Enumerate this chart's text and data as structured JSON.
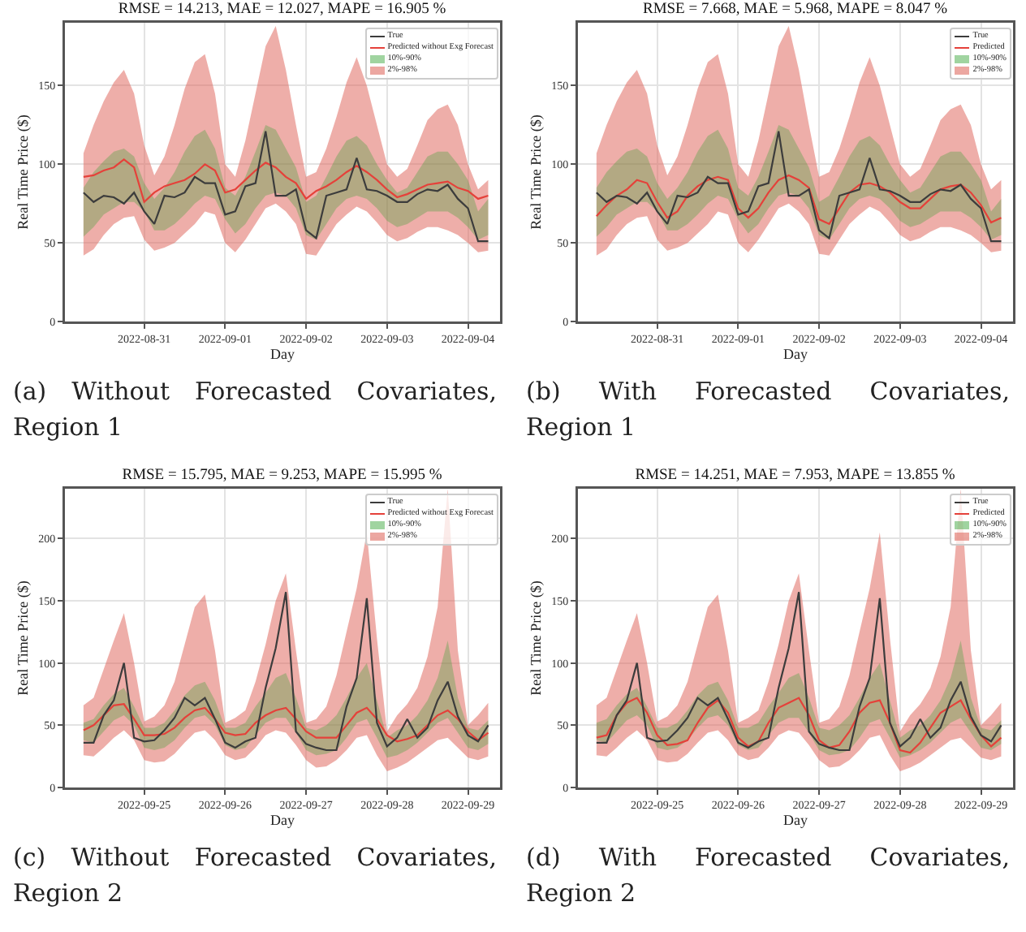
{
  "chart_data": [
    {
      "type": "line",
      "title": "RMSE = 14.213, MAE = 12.027, MAPE = 16.905 %",
      "xlabel": "Day",
      "ylabel": "Real Time Price ($)",
      "annotations": [
        "(a) Without Forecasted Covariates, Region 1"
      ],
      "xlim": [
        "2022-08-30T00:30",
        "2022-09-04T09:30"
      ],
      "ylim": [
        0,
        190
      ],
      "xticks": [
        "2022-08-31",
        "2022-09-01",
        "2022-09-02",
        "2022-09-03",
        "2022-09-04"
      ],
      "yticks": [
        0,
        50,
        100,
        150
      ],
      "grid": true,
      "legend": "top right",
      "x": [
        "2022-08-30T06:00",
        "2022-08-30T09:00",
        "2022-08-30T12:00",
        "2022-08-30T15:00",
        "2022-08-30T18:00",
        "2022-08-30T21:00",
        "2022-08-31T00:00",
        "2022-08-31T03:00",
        "2022-08-31T06:00",
        "2022-08-31T09:00",
        "2022-08-31T12:00",
        "2022-08-31T15:00",
        "2022-08-31T18:00",
        "2022-08-31T21:00",
        "2022-09-01T00:00",
        "2022-09-01T03:00",
        "2022-09-01T06:00",
        "2022-09-01T09:00",
        "2022-09-01T12:00",
        "2022-09-01T15:00",
        "2022-09-01T18:00",
        "2022-09-01T21:00",
        "2022-09-02T00:00",
        "2022-09-02T03:00",
        "2022-09-02T06:00",
        "2022-09-02T09:00",
        "2022-09-02T12:00",
        "2022-09-02T15:00",
        "2022-09-02T18:00",
        "2022-09-02T21:00",
        "2022-09-03T00:00",
        "2022-09-03T03:00",
        "2022-09-03T06:00",
        "2022-09-03T09:00",
        "2022-09-03T12:00",
        "2022-09-03T15:00",
        "2022-09-03T18:00",
        "2022-09-03T21:00",
        "2022-09-04T00:00",
        "2022-09-04T03:00",
        "2022-09-04T06:00"
      ],
      "series": [
        {
          "name": "True",
          "color": "#3c3c3c",
          "values": [
            82,
            76,
            80,
            79,
            75,
            82,
            70,
            62,
            80,
            79,
            82,
            92,
            88,
            88,
            68,
            70,
            86,
            88,
            121,
            80,
            80,
            84,
            58,
            53,
            80,
            82,
            84,
            104,
            84,
            83,
            80,
            76,
            76,
            81,
            84,
            83,
            87,
            78,
            72,
            51,
            51
          ]
        },
        {
          "name": "Predicted without Exg Forecast",
          "color": "#e5413a",
          "values": [
            92,
            93,
            96,
            98,
            103,
            98,
            76,
            82,
            86,
            88,
            90,
            94,
            100,
            96,
            82,
            84,
            90,
            96,
            101,
            98,
            92,
            88,
            78,
            83,
            86,
            90,
            95,
            99,
            95,
            90,
            84,
            79,
            81,
            84,
            87,
            88,
            89,
            85,
            83,
            78,
            80
          ]
        },
        {
          "name": "10%-90%",
          "color": "#2ca02c",
          "values": [
            null,
            null,
            null,
            null,
            null,
            null,
            null,
            null,
            null,
            null,
            null,
            null,
            null,
            null,
            null,
            null,
            null,
            null,
            null,
            null,
            null,
            null,
            null,
            null,
            null,
            null,
            null,
            null,
            null,
            null,
            null,
            null,
            null,
            null,
            null,
            null,
            null,
            null,
            null,
            null,
            null
          ],
          "lower": [
            54,
            60,
            68,
            72,
            76,
            76,
            70,
            58,
            58,
            62,
            68,
            75,
            80,
            78,
            65,
            56,
            62,
            72,
            80,
            82,
            80,
            72,
            55,
            52,
            62,
            72,
            78,
            80,
            78,
            72,
            64,
            60,
            62,
            66,
            70,
            70,
            70,
            66,
            60,
            52,
            55
          ],
          "upper": [
            85,
            95,
            102,
            108,
            110,
            105,
            88,
            78,
            85,
            95,
            108,
            118,
            122,
            110,
            85,
            80,
            92,
            108,
            125,
            122,
            110,
            98,
            76,
            80,
            92,
            105,
            115,
            118,
            112,
            100,
            90,
            82,
            85,
            95,
            105,
            108,
            108,
            100,
            90,
            70,
            78
          ]
        },
        {
          "name": "2%-98%",
          "color": "#e06c63",
          "values": [
            null,
            null,
            null,
            null,
            null,
            null,
            null,
            null,
            null,
            null,
            null,
            null,
            null,
            null,
            null,
            null,
            null,
            null,
            null,
            null,
            null,
            null,
            null,
            null,
            null,
            null,
            null,
            null,
            null,
            null,
            null,
            null,
            null,
            null,
            null,
            null,
            null,
            null,
            null,
            null,
            null
          ],
          "lower": [
            42,
            46,
            55,
            62,
            66,
            67,
            52,
            45,
            47,
            50,
            56,
            62,
            70,
            68,
            50,
            44,
            52,
            62,
            72,
            75,
            70,
            62,
            43,
            42,
            52,
            62,
            68,
            73,
            70,
            63,
            55,
            51,
            53,
            57,
            60,
            60,
            58,
            55,
            50,
            44,
            45
          ],
          "upper": [
            107,
            125,
            140,
            152,
            160,
            145,
            112,
            93,
            105,
            125,
            148,
            165,
            170,
            145,
            100,
            92,
            115,
            145,
            175,
            188,
            160,
            125,
            92,
            95,
            110,
            130,
            152,
            168,
            150,
            125,
            100,
            92,
            97,
            112,
            128,
            135,
            138,
            125,
            100,
            84,
            90
          ]
        }
      ]
    },
    {
      "type": "line",
      "title": "RMSE = 7.668, MAE = 5.968, MAPE = 8.047 %",
      "xlabel": "Day",
      "ylabel": "Real Time Price ($)",
      "annotations": [
        "(b) With Forecasted Covariates, Region 1"
      ],
      "xlim": [
        "2022-08-30T00:30",
        "2022-09-04T09:30"
      ],
      "ylim": [
        0,
        190
      ],
      "xticks": [
        "2022-08-31",
        "2022-09-01",
        "2022-09-02",
        "2022-09-03",
        "2022-09-04"
      ],
      "yticks": [
        0,
        50,
        100,
        150
      ],
      "grid": true,
      "legend": "top right",
      "x": [
        "2022-08-30T06:00",
        "2022-08-30T09:00",
        "2022-08-30T12:00",
        "2022-08-30T15:00",
        "2022-08-30T18:00",
        "2022-08-30T21:00",
        "2022-08-31T00:00",
        "2022-08-31T03:00",
        "2022-08-31T06:00",
        "2022-08-31T09:00",
        "2022-08-31T12:00",
        "2022-08-31T15:00",
        "2022-08-31T18:00",
        "2022-08-31T21:00",
        "2022-09-01T00:00",
        "2022-09-01T03:00",
        "2022-09-01T06:00",
        "2022-09-01T09:00",
        "2022-09-01T12:00",
        "2022-09-01T15:00",
        "2022-09-01T18:00",
        "2022-09-01T21:00",
        "2022-09-02T00:00",
        "2022-09-02T03:00",
        "2022-09-02T06:00",
        "2022-09-02T09:00",
        "2022-09-02T12:00",
        "2022-09-02T15:00",
        "2022-09-02T18:00",
        "2022-09-02T21:00",
        "2022-09-03T00:00",
        "2022-09-03T03:00",
        "2022-09-03T06:00",
        "2022-09-03T09:00",
        "2022-09-03T12:00",
        "2022-09-03T15:00",
        "2022-09-03T18:00",
        "2022-09-03T21:00",
        "2022-09-04T00:00",
        "2022-09-04T03:00",
        "2022-09-04T06:00"
      ],
      "series": [
        {
          "name": "True",
          "color": "#3c3c3c",
          "values": [
            82,
            76,
            80,
            79,
            75,
            82,
            70,
            62,
            80,
            79,
            82,
            92,
            88,
            88,
            68,
            70,
            86,
            88,
            121,
            80,
            80,
            84,
            58,
            53,
            80,
            82,
            84,
            104,
            84,
            83,
            80,
            76,
            76,
            81,
            84,
            83,
            87,
            78,
            72,
            51,
            51
          ]
        },
        {
          "name": "Predicted",
          "color": "#e5413a",
          "values": [
            67,
            74,
            80,
            84,
            90,
            88,
            76,
            66,
            70,
            80,
            86,
            90,
            92,
            90,
            72,
            66,
            72,
            82,
            90,
            93,
            90,
            85,
            65,
            62,
            72,
            82,
            87,
            88,
            86,
            82,
            76,
            72,
            72,
            78,
            84,
            86,
            87,
            82,
            74,
            63,
            66
          ]
        },
        {
          "name": "10%-90%",
          "color": "#2ca02c",
          "values": [
            null,
            null,
            null,
            null,
            null,
            null,
            null,
            null,
            null,
            null,
            null,
            null,
            null,
            null,
            null,
            null,
            null,
            null,
            null,
            null,
            null,
            null,
            null,
            null,
            null,
            null,
            null,
            null,
            null,
            null,
            null,
            null,
            null,
            null,
            null,
            null,
            null,
            null,
            null,
            null,
            null
          ],
          "lower": [
            54,
            60,
            68,
            72,
            76,
            76,
            70,
            58,
            58,
            62,
            68,
            75,
            80,
            78,
            65,
            56,
            62,
            72,
            80,
            82,
            80,
            72,
            55,
            52,
            62,
            72,
            78,
            80,
            78,
            72,
            64,
            60,
            62,
            66,
            70,
            70,
            70,
            66,
            60,
            52,
            55
          ],
          "upper": [
            85,
            95,
            102,
            108,
            110,
            105,
            88,
            78,
            85,
            95,
            108,
            118,
            122,
            110,
            85,
            80,
            92,
            108,
            125,
            122,
            110,
            98,
            76,
            80,
            92,
            105,
            115,
            118,
            112,
            100,
            90,
            82,
            85,
            95,
            105,
            108,
            108,
            100,
            90,
            70,
            78
          ]
        },
        {
          "name": "2%-98%",
          "color": "#e06c63",
          "values": [
            null,
            null,
            null,
            null,
            null,
            null,
            null,
            null,
            null,
            null,
            null,
            null,
            null,
            null,
            null,
            null,
            null,
            null,
            null,
            null,
            null,
            null,
            null,
            null,
            null,
            null,
            null,
            null,
            null,
            null,
            null,
            null,
            null,
            null,
            null,
            null,
            null,
            null,
            null,
            null,
            null
          ],
          "lower": [
            42,
            46,
            55,
            62,
            66,
            67,
            52,
            45,
            47,
            50,
            56,
            62,
            70,
            68,
            50,
            44,
            52,
            62,
            72,
            75,
            70,
            62,
            43,
            42,
            52,
            62,
            68,
            73,
            70,
            63,
            55,
            51,
            53,
            57,
            60,
            60,
            58,
            55,
            50,
            44,
            45
          ],
          "upper": [
            107,
            125,
            140,
            152,
            160,
            145,
            112,
            93,
            105,
            125,
            148,
            165,
            170,
            145,
            100,
            92,
            115,
            145,
            175,
            188,
            160,
            125,
            92,
            95,
            110,
            130,
            152,
            168,
            150,
            125,
            100,
            92,
            97,
            112,
            128,
            135,
            138,
            125,
            100,
            84,
            90
          ]
        }
      ]
    },
    {
      "type": "line",
      "title": "RMSE = 15.795, MAE = 9.253, MAPE = 15.995 %",
      "xlabel": "Day",
      "ylabel": "Real Time Price ($)",
      "annotations": [
        "(c) Without Forecasted Covariates, Region 2"
      ],
      "xlim": [
        "2022-09-24T00:30",
        "2022-09-29T09:30"
      ],
      "ylim": [
        0,
        240
      ],
      "xticks": [
        "2022-09-25",
        "2022-09-26",
        "2022-09-27",
        "2022-09-28",
        "2022-09-29"
      ],
      "yticks": [
        0,
        50,
        100,
        150,
        200
      ],
      "grid": true,
      "legend": "top right",
      "x": [
        "2022-09-24T06:00",
        "2022-09-24T09:00",
        "2022-09-24T12:00",
        "2022-09-24T15:00",
        "2022-09-24T18:00",
        "2022-09-24T21:00",
        "2022-09-25T00:00",
        "2022-09-25T03:00",
        "2022-09-25T06:00",
        "2022-09-25T09:00",
        "2022-09-25T12:00",
        "2022-09-25T15:00",
        "2022-09-25T18:00",
        "2022-09-25T21:00",
        "2022-09-26T00:00",
        "2022-09-26T03:00",
        "2022-09-26T06:00",
        "2022-09-26T09:00",
        "2022-09-26T12:00",
        "2022-09-26T15:00",
        "2022-09-26T18:00",
        "2022-09-26T21:00",
        "2022-09-27T00:00",
        "2022-09-27T03:00",
        "2022-09-27T06:00",
        "2022-09-27T09:00",
        "2022-09-27T12:00",
        "2022-09-27T15:00",
        "2022-09-27T18:00",
        "2022-09-27T21:00",
        "2022-09-28T00:00",
        "2022-09-28T03:00",
        "2022-09-28T06:00",
        "2022-09-28T09:00",
        "2022-09-28T12:00",
        "2022-09-28T15:00",
        "2022-09-28T18:00",
        "2022-09-28T21:00",
        "2022-09-29T00:00",
        "2022-09-29T03:00",
        "2022-09-29T06:00"
      ],
      "series": [
        {
          "name": "True",
          "color": "#3c3c3c",
          "values": [
            36,
            36,
            58,
            70,
            100,
            40,
            37,
            38,
            46,
            56,
            72,
            66,
            72,
            55,
            36,
            32,
            37,
            40,
            80,
            112,
            157,
            45,
            35,
            32,
            30,
            30,
            65,
            88,
            152,
            52,
            33,
            40,
            55,
            40,
            48,
            70,
            85,
            57,
            42,
            37,
            50
          ]
        },
        {
          "name": "Predicted without Exg Forecast",
          "color": "#e5413a",
          "values": [
            46,
            50,
            58,
            66,
            67,
            55,
            42,
            42,
            43,
            48,
            56,
            62,
            64,
            55,
            44,
            42,
            43,
            52,
            58,
            62,
            64,
            55,
            45,
            40,
            40,
            40,
            50,
            60,
            64,
            55,
            42,
            37,
            39,
            42,
            50,
            58,
            62,
            55,
            45,
            38,
            44
          ]
        },
        {
          "name": "10%-90%",
          "color": "#2ca02c",
          "values": [
            null,
            null,
            null,
            null,
            null,
            null,
            null,
            null,
            null,
            null,
            null,
            null,
            null,
            null,
            null,
            null,
            null,
            null,
            null,
            null,
            null,
            null,
            null,
            null,
            null,
            null,
            null,
            null,
            null,
            null,
            null,
            null,
            null,
            null,
            null,
            null,
            null,
            null,
            null,
            null,
            null
          ],
          "lower": [
            38,
            36,
            45,
            54,
            58,
            50,
            32,
            30,
            32,
            38,
            48,
            56,
            58,
            50,
            34,
            30,
            32,
            42,
            52,
            56,
            56,
            44,
            30,
            26,
            27,
            30,
            40,
            52,
            55,
            40,
            24,
            26,
            30,
            36,
            44,
            52,
            56,
            44,
            32,
            30,
            35
          ],
          "upper": [
            52,
            55,
            66,
            75,
            80,
            65,
            48,
            48,
            52,
            62,
            74,
            82,
            85,
            70,
            48,
            48,
            52,
            65,
            76,
            88,
            92,
            72,
            48,
            46,
            50,
            58,
            72,
            88,
            100,
            70,
            40,
            46,
            50,
            58,
            70,
            88,
            118,
            72,
            48,
            46,
            54
          ]
        },
        {
          "name": "2%-98%",
          "color": "#e06c63",
          "values": [
            null,
            null,
            null,
            null,
            null,
            null,
            null,
            null,
            null,
            null,
            null,
            null,
            null,
            null,
            null,
            null,
            null,
            null,
            null,
            null,
            null,
            null,
            null,
            null,
            null,
            null,
            null,
            null,
            null,
            null,
            null,
            null,
            null,
            null,
            null,
            null,
            null,
            null,
            null,
            null,
            null
          ],
          "lower": [
            26,
            25,
            32,
            40,
            46,
            38,
            22,
            20,
            21,
            27,
            36,
            44,
            46,
            38,
            26,
            22,
            24,
            32,
            42,
            46,
            44,
            34,
            22,
            16,
            17,
            22,
            30,
            40,
            42,
            26,
            13,
            16,
            20,
            26,
            32,
            38,
            40,
            32,
            24,
            22,
            25
          ],
          "upper": [
            66,
            72,
            95,
            118,
            140,
            100,
            53,
            57,
            66,
            85,
            115,
            145,
            155,
            110,
            52,
            56,
            62,
            85,
            115,
            150,
            172,
            110,
            52,
            55,
            65,
            90,
            125,
            160,
            205,
            120,
            45,
            58,
            67,
            80,
            105,
            145,
            240,
            110,
            50,
            58,
            68
          ]
        }
      ]
    },
    {
      "type": "line",
      "title": "RMSE = 14.251, MAE = 7.953, MAPE = 13.855 %",
      "xlabel": "Day",
      "ylabel": "Real Time Price ($)",
      "annotations": [
        "(d) With Forecasted Covariates, Region 2"
      ],
      "xlim": [
        "2022-09-24T00:30",
        "2022-09-29T09:30"
      ],
      "ylim": [
        0,
        240
      ],
      "xticks": [
        "2022-09-25",
        "2022-09-26",
        "2022-09-27",
        "2022-09-28",
        "2022-09-29"
      ],
      "yticks": [
        0,
        50,
        100,
        150,
        200
      ],
      "grid": true,
      "legend": "top right",
      "x": [
        "2022-09-24T06:00",
        "2022-09-24T09:00",
        "2022-09-24T12:00",
        "2022-09-24T15:00",
        "2022-09-24T18:00",
        "2022-09-24T21:00",
        "2022-09-25T00:00",
        "2022-09-25T03:00",
        "2022-09-25T06:00",
        "2022-09-25T09:00",
        "2022-09-25T12:00",
        "2022-09-25T15:00",
        "2022-09-25T18:00",
        "2022-09-25T21:00",
        "2022-09-26T00:00",
        "2022-09-26T03:00",
        "2022-09-26T06:00",
        "2022-09-26T09:00",
        "2022-09-26T12:00",
        "2022-09-26T15:00",
        "2022-09-26T18:00",
        "2022-09-26T21:00",
        "2022-09-27T00:00",
        "2022-09-27T03:00",
        "2022-09-27T06:00",
        "2022-09-27T09:00",
        "2022-09-27T12:00",
        "2022-09-27T15:00",
        "2022-09-27T18:00",
        "2022-09-27T21:00",
        "2022-09-28T00:00",
        "2022-09-28T03:00",
        "2022-09-28T06:00",
        "2022-09-28T09:00",
        "2022-09-28T12:00",
        "2022-09-28T15:00",
        "2022-09-28T18:00",
        "2022-09-28T21:00",
        "2022-09-29T00:00",
        "2022-09-29T03:00",
        "2022-09-29T06:00"
      ],
      "series": [
        {
          "name": "True",
          "color": "#3c3c3c",
          "values": [
            36,
            36,
            58,
            70,
            100,
            40,
            37,
            38,
            46,
            56,
            72,
            66,
            72,
            55,
            36,
            32,
            37,
            40,
            80,
            112,
            157,
            45,
            35,
            32,
            30,
            30,
            65,
            88,
            152,
            52,
            33,
            40,
            55,
            40,
            48,
            70,
            85,
            57,
            42,
            37,
            50
          ]
        },
        {
          "name": "Predicted",
          "color": "#e5413a",
          "values": [
            40,
            42,
            58,
            68,
            72,
            60,
            42,
            34,
            35,
            38,
            52,
            64,
            70,
            60,
            40,
            33,
            37,
            52,
            64,
            68,
            72,
            58,
            38,
            32,
            34,
            45,
            60,
            68,
            70,
            52,
            30,
            28,
            36,
            48,
            60,
            65,
            70,
            55,
            42,
            33,
            40
          ]
        },
        {
          "name": "10%-90%",
          "color": "#2ca02c",
          "values": [
            null,
            null,
            null,
            null,
            null,
            null,
            null,
            null,
            null,
            null,
            null,
            null,
            null,
            null,
            null,
            null,
            null,
            null,
            null,
            null,
            null,
            null,
            null,
            null,
            null,
            null,
            null,
            null,
            null,
            null,
            null,
            null,
            null,
            null,
            null,
            null,
            null,
            null,
            null,
            null,
            null
          ],
          "lower": [
            38,
            36,
            45,
            54,
            58,
            50,
            32,
            30,
            32,
            38,
            48,
            56,
            58,
            50,
            34,
            30,
            32,
            42,
            52,
            56,
            56,
            44,
            30,
            26,
            27,
            30,
            40,
            52,
            55,
            40,
            24,
            26,
            30,
            36,
            44,
            52,
            56,
            44,
            32,
            30,
            35
          ],
          "upper": [
            52,
            55,
            66,
            75,
            80,
            65,
            48,
            48,
            52,
            62,
            74,
            82,
            85,
            70,
            48,
            48,
            52,
            65,
            76,
            88,
            92,
            72,
            48,
            46,
            50,
            58,
            72,
            88,
            100,
            70,
            40,
            46,
            50,
            58,
            70,
            88,
            118,
            72,
            48,
            46,
            54
          ]
        },
        {
          "name": "2%-98%",
          "color": "#e06c63",
          "values": [
            null,
            null,
            null,
            null,
            null,
            null,
            null,
            null,
            null,
            null,
            null,
            null,
            null,
            null,
            null,
            null,
            null,
            null,
            null,
            null,
            null,
            null,
            null,
            null,
            null,
            null,
            null,
            null,
            null,
            null,
            null,
            null,
            null,
            null,
            null,
            null,
            null,
            null,
            null,
            null,
            null
          ],
          "lower": [
            26,
            25,
            32,
            40,
            46,
            38,
            22,
            20,
            21,
            27,
            36,
            44,
            46,
            38,
            26,
            22,
            24,
            32,
            42,
            46,
            44,
            34,
            22,
            16,
            17,
            22,
            30,
            40,
            42,
            26,
            13,
            16,
            20,
            26,
            32,
            38,
            40,
            32,
            24,
            22,
            25
          ],
          "upper": [
            66,
            72,
            95,
            118,
            140,
            100,
            53,
            57,
            66,
            85,
            115,
            145,
            155,
            110,
            52,
            56,
            62,
            85,
            115,
            150,
            172,
            110,
            52,
            55,
            65,
            90,
            125,
            160,
            205,
            120,
            45,
            58,
            67,
            80,
            105,
            145,
            240,
            110,
            50,
            58,
            68
          ]
        }
      ]
    }
  ]
}
